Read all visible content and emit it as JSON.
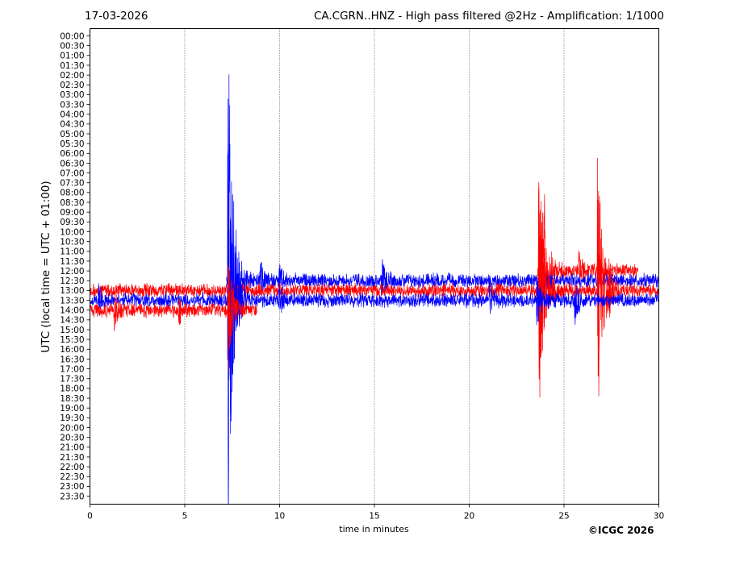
{
  "header": {
    "date": "17-03-2026",
    "title": "CA.CGRN..HNZ - High pass filtered @2Hz - Amplification: 1/1000"
  },
  "footer": {
    "copyright": "©ICGC 2026"
  },
  "colors": {
    "blue": "#0000ff",
    "red": "#ff0000"
  },
  "chart_data": {
    "type": "line",
    "title": "CA.CGRN..HNZ - High pass filtered @2Hz - Amplification: 1/1000",
    "xlabel": "time in minutes",
    "ylabel": "UTC (local time = UTC + 01:00)",
    "xlim": [
      0,
      30
    ],
    "x_ticks": [
      "0",
      "5",
      "10",
      "15",
      "20",
      "25",
      "30"
    ],
    "x_gridlines": [
      5,
      10,
      15,
      20,
      25
    ],
    "grid": "vertical dotted",
    "y_ticks": [
      "00:00",
      "00:30",
      "01:00",
      "01:30",
      "02:00",
      "02:30",
      "03:00",
      "03:30",
      "04:00",
      "04:30",
      "05:00",
      "05:30",
      "06:00",
      "06:30",
      "07:00",
      "07:30",
      "08:00",
      "08:30",
      "09:00",
      "09:30",
      "10:00",
      "10:30",
      "11:00",
      "11:30",
      "12:00",
      "12:30",
      "13:00",
      "13:30",
      "14:00",
      "14:30",
      "15:00",
      "15:30",
      "16:00",
      "16:30",
      "17:00",
      "17:30",
      "18:00",
      "18:30",
      "19:00",
      "19:30",
      "20:00",
      "20:30",
      "21:00",
      "21:30",
      "22:00",
      "22:30",
      "23:00",
      "23:30"
    ],
    "traces": [
      {
        "row": "12:00",
        "color": "red",
        "x_start": 23.6,
        "x_end": 28.9,
        "bursts": [
          {
            "x": 23.7,
            "amp": 14
          },
          {
            "x": 24.0,
            "amp": 2.5
          },
          {
            "x": 25.8,
            "amp": 1.8
          },
          {
            "x": 26.8,
            "amp": 1.8
          }
        ]
      },
      {
        "row": "12:30",
        "color": "blue",
        "x_start": 7.2,
        "x_end": 30,
        "bursts": [
          {
            "x": 7.3,
            "amp": 26
          },
          {
            "x": 9.0,
            "amp": 1.5
          },
          {
            "x": 10.0,
            "amp": 1.2
          },
          {
            "x": 15.4,
            "amp": 1.8
          },
          {
            "x": 23.7,
            "amp": 3
          }
        ]
      },
      {
        "row": "13:00",
        "color": "red",
        "x_start": 0,
        "x_end": 30,
        "bursts": [
          {
            "x": 7.3,
            "amp": 2
          },
          {
            "x": 23.7,
            "amp": 12
          },
          {
            "x": 26.8,
            "amp": 13
          },
          {
            "x": 27.4,
            "amp": 1.5
          }
        ]
      },
      {
        "row": "13:30",
        "color": "blue",
        "x_start": 0,
        "x_end": 30,
        "bursts": [
          {
            "x": 0.5,
            "amp": 1.3
          },
          {
            "x": 7.3,
            "amp": 22
          },
          {
            "x": 10.0,
            "amp": 1.2
          },
          {
            "x": 21.1,
            "amp": 1.3
          },
          {
            "x": 23.6,
            "amp": 2.5
          },
          {
            "x": 25.6,
            "amp": 1.8
          }
        ]
      },
      {
        "row": "14:00",
        "color": "red",
        "x_start": 0,
        "x_end": 8.8,
        "bursts": [
          {
            "x": 1.3,
            "amp": 1.8
          },
          {
            "x": 4.7,
            "amp": 1.0
          },
          {
            "x": 7.3,
            "amp": 6
          }
        ]
      }
    ]
  }
}
